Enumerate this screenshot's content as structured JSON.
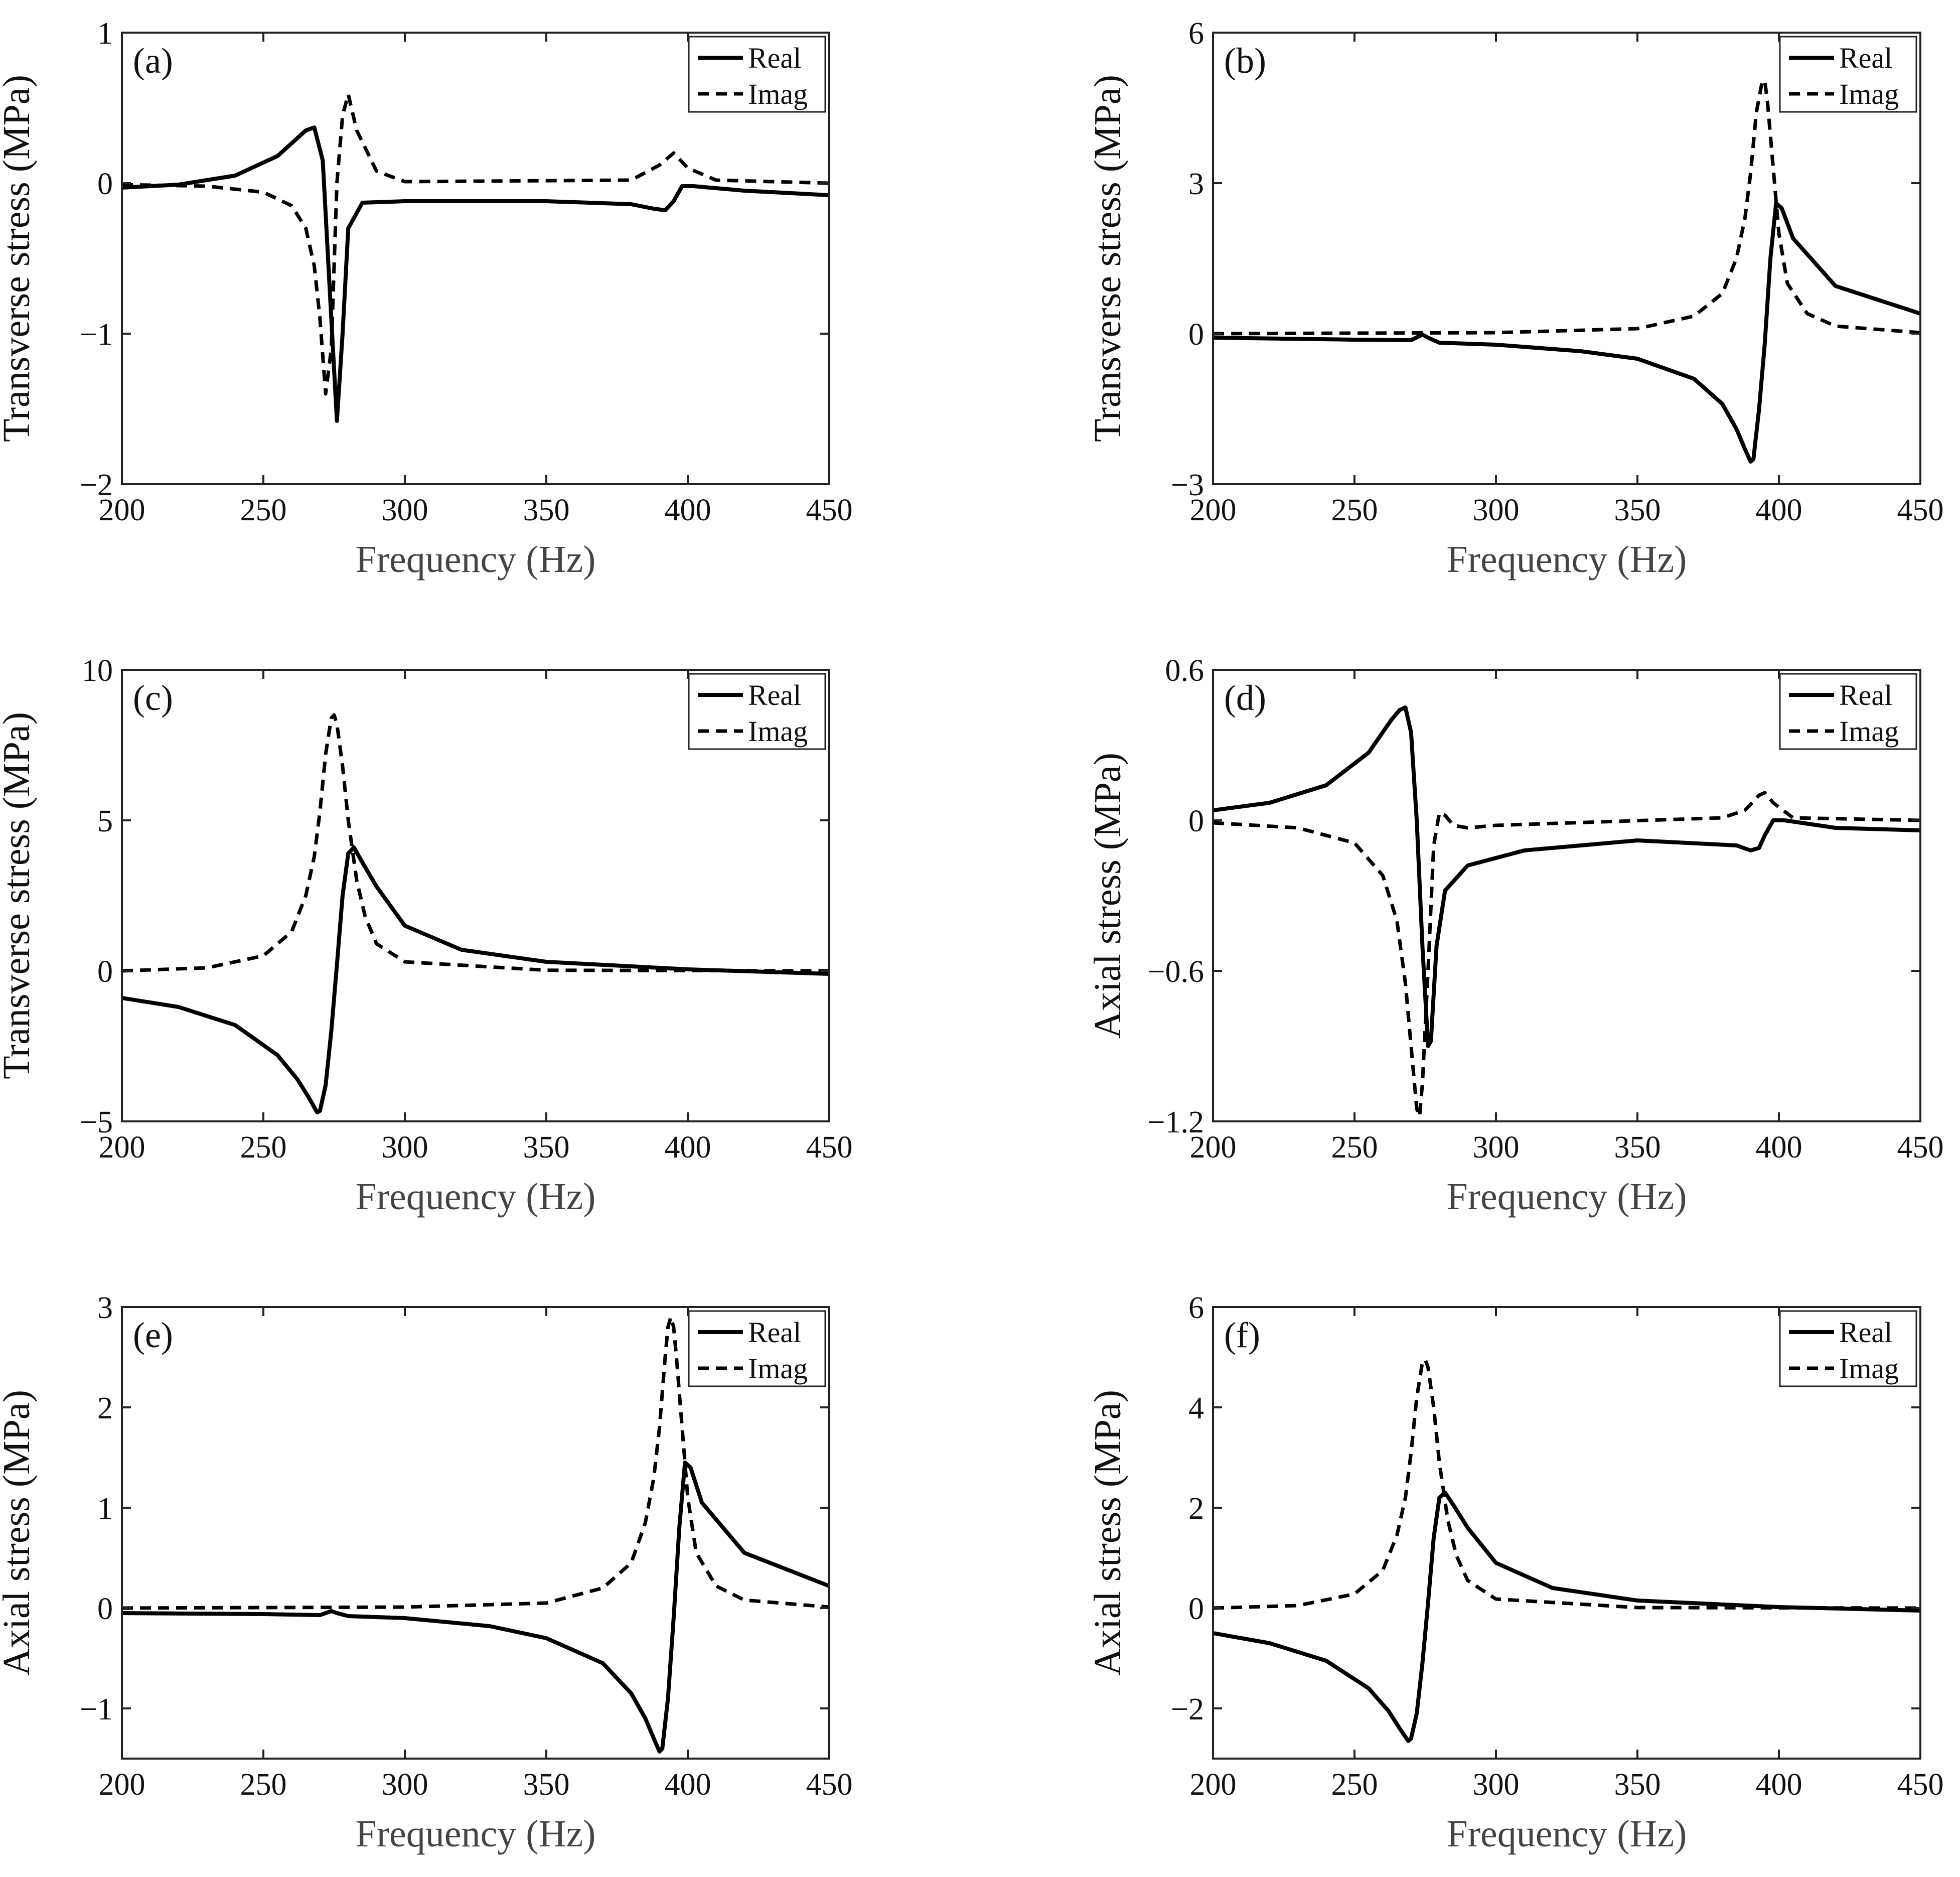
{
  "figure": {
    "legend_labels": {
      "real": "Real",
      "imag": "Imag"
    }
  },
  "chart_data": [
    {
      "panel": "(a)",
      "type": "line",
      "xlabel": "Frequency (Hz)",
      "ylabel": "Transverse stress (MPa)",
      "xlim": [
        200,
        450
      ],
      "ylim": [
        -2,
        1
      ],
      "xticks": [
        200,
        250,
        300,
        350,
        400,
        450
      ],
      "xtick_labels": [
        "200",
        "250",
        "300",
        "350",
        "400",
        "450"
      ],
      "yticks": [
        -2,
        -1,
        0,
        1
      ],
      "ytick_labels": [
        "−2",
        "−1",
        "0",
        "1"
      ],
      "legend": "top-right",
      "series": [
        {
          "name": "Real",
          "style": "solid",
          "x": [
            200,
            220,
            240,
            255,
            265,
            268,
            271,
            274,
            276,
            278,
            280,
            285,
            300,
            350,
            380,
            388,
            392,
            395,
            398,
            402,
            420,
            450
          ],
          "y": [
            -0.03,
            -0.01,
            0.05,
            0.18,
            0.35,
            0.37,
            0.15,
            -0.9,
            -1.58,
            -1.0,
            -0.3,
            -0.13,
            -0.12,
            -0.12,
            -0.14,
            -0.17,
            -0.18,
            -0.12,
            -0.02,
            -0.02,
            -0.05,
            -0.08
          ]
        },
        {
          "name": "Imag",
          "style": "dashed",
          "x": [
            200,
            230,
            250,
            260,
            265,
            268,
            270,
            272,
            274,
            276,
            278,
            280,
            283,
            290,
            300,
            380,
            390,
            395,
            400,
            410,
            450
          ],
          "y": [
            -0.01,
            -0.02,
            -0.06,
            -0.15,
            -0.3,
            -0.55,
            -0.9,
            -1.4,
            -1.1,
            0.0,
            0.45,
            0.59,
            0.35,
            0.08,
            0.01,
            0.02,
            0.12,
            0.2,
            0.1,
            0.02,
            0.0
          ]
        }
      ]
    },
    {
      "panel": "(b)",
      "type": "line",
      "xlabel": "Frequency (Hz)",
      "ylabel": "Transverse stress (MPa)",
      "xlim": [
        200,
        450
      ],
      "ylim": [
        -3,
        6
      ],
      "xticks": [
        200,
        250,
        300,
        350,
        400,
        450
      ],
      "xtick_labels": [
        "200",
        "250",
        "300",
        "350",
        "400",
        "450"
      ],
      "yticks": [
        -3,
        0,
        3,
        6
      ],
      "ytick_labels": [
        "−3",
        "0",
        "3",
        "6"
      ],
      "legend": "top-right",
      "series": [
        {
          "name": "Real",
          "style": "solid",
          "x": [
            200,
            250,
            270,
            274,
            276,
            280,
            300,
            330,
            350,
            370,
            380,
            385,
            388,
            390,
            391,
            393,
            395,
            397,
            399,
            401,
            405,
            420,
            450
          ],
          "y": [
            -0.08,
            -0.12,
            -0.13,
            -0.02,
            -0.08,
            -0.18,
            -0.22,
            -0.35,
            -0.5,
            -0.9,
            -1.4,
            -1.9,
            -2.3,
            -2.55,
            -2.5,
            -1.5,
            -0.2,
            1.5,
            2.6,
            2.5,
            1.9,
            0.95,
            0.4
          ]
        },
        {
          "name": "Imag",
          "style": "dashed",
          "x": [
            200,
            300,
            350,
            370,
            380,
            385,
            388,
            390,
            392,
            394,
            395,
            396,
            398,
            400,
            403,
            410,
            420,
            450
          ],
          "y": [
            0.0,
            0.02,
            0.1,
            0.35,
            0.8,
            1.5,
            2.3,
            3.2,
            4.4,
            5.0,
            5.05,
            4.6,
            3.3,
            2.0,
            1.0,
            0.4,
            0.15,
            0.02
          ]
        }
      ]
    },
    {
      "panel": "(c)",
      "type": "line",
      "xlabel": "Frequency (Hz)",
      "ylabel": "Transverse stress (MPa)",
      "xlim": [
        200,
        450
      ],
      "ylim": [
        -5,
        10
      ],
      "xticks": [
        200,
        250,
        300,
        350,
        400,
        450
      ],
      "xtick_labels": [
        "200",
        "250",
        "300",
        "350",
        "400",
        "450"
      ],
      "yticks": [
        -5,
        0,
        5,
        10
      ],
      "ytick_labels": [
        "−5",
        "0",
        "5",
        "10"
      ],
      "legend": "top-right",
      "series": [
        {
          "name": "Real",
          "style": "solid",
          "x": [
            200,
            220,
            240,
            255,
            262,
            266,
            269,
            270,
            272,
            274,
            276,
            278,
            280,
            282,
            285,
            290,
            300,
            320,
            350,
            400,
            450
          ],
          "y": [
            -0.9,
            -1.2,
            -1.8,
            -2.8,
            -3.6,
            -4.2,
            -4.7,
            -4.65,
            -3.8,
            -2.0,
            0.2,
            2.5,
            3.9,
            4.1,
            3.6,
            2.8,
            1.5,
            0.7,
            0.3,
            0.05,
            -0.1
          ]
        },
        {
          "name": "Imag",
          "style": "dashed",
          "x": [
            200,
            230,
            250,
            260,
            265,
            268,
            270,
            272,
            274,
            275,
            276,
            278,
            280,
            283,
            286,
            290,
            300,
            350,
            450
          ],
          "y": [
            0.0,
            0.1,
            0.5,
            1.3,
            2.5,
            3.8,
            5.3,
            7.2,
            8.4,
            8.5,
            8.2,
            6.8,
            5.0,
            3.0,
            1.8,
            0.9,
            0.3,
            0.02,
            0.0
          ]
        }
      ]
    },
    {
      "panel": "(d)",
      "type": "line",
      "xlabel": "Frequency (Hz)",
      "ylabel": "Axial stress (MPa)",
      "xlim": [
        200,
        450
      ],
      "ylim": [
        -1.2,
        0.6
      ],
      "xticks": [
        200,
        250,
        300,
        350,
        400,
        450
      ],
      "xtick_labels": [
        "200",
        "250",
        "300",
        "350",
        "400",
        "450"
      ],
      "yticks": [
        -1.2,
        -0.6,
        0,
        0.6
      ],
      "ytick_labels": [
        "−1.2",
        "−0.6",
        "0",
        "0.6"
      ],
      "legend": "top-right",
      "series": [
        {
          "name": "Real",
          "style": "solid",
          "x": [
            200,
            220,
            240,
            255,
            263,
            266,
            268,
            270,
            272,
            274,
            276,
            277,
            279,
            282,
            290,
            310,
            350,
            385,
            390,
            393,
            395,
            398,
            402,
            420,
            450
          ],
          "y": [
            0.04,
            0.07,
            0.14,
            0.27,
            0.4,
            0.44,
            0.45,
            0.35,
            0.0,
            -0.5,
            -0.9,
            -0.88,
            -0.5,
            -0.28,
            -0.18,
            -0.12,
            -0.08,
            -0.1,
            -0.12,
            -0.11,
            -0.06,
            0.0,
            0.0,
            -0.03,
            -0.04
          ]
        },
        {
          "name": "Imag",
          "style": "dashed",
          "x": [
            200,
            230,
            250,
            260,
            265,
            268,
            270,
            272,
            273,
            274,
            276,
            278,
            280,
            282,
            285,
            290,
            300,
            380,
            388,
            393,
            395,
            398,
            405,
            450
          ],
          "y": [
            -0.01,
            -0.03,
            -0.09,
            -0.22,
            -0.4,
            -0.65,
            -0.9,
            -1.15,
            -1.18,
            -1.05,
            -0.6,
            -0.1,
            0.03,
            0.02,
            -0.02,
            -0.03,
            -0.02,
            0.01,
            0.04,
            0.1,
            0.11,
            0.07,
            0.01,
            0.0
          ]
        }
      ]
    },
    {
      "panel": "(e)",
      "type": "line",
      "xlabel": "Frequency (Hz)",
      "ylabel": "Axial stress (MPa)",
      "xlim": [
        200,
        450
      ],
      "ylim": [
        -1.5,
        3
      ],
      "xticks": [
        200,
        250,
        300,
        350,
        400,
        450
      ],
      "xtick_labels": [
        "200",
        "250",
        "300",
        "350",
        "400",
        "450"
      ],
      "yticks": [
        -1,
        0,
        1,
        2,
        3
      ],
      "ytick_labels": [
        "−1",
        "0",
        "1",
        "2",
        "3"
      ],
      "legend": "top-right",
      "series": [
        {
          "name": "Real",
          "style": "solid",
          "x": [
            200,
            250,
            270,
            274,
            276,
            280,
            300,
            330,
            350,
            370,
            380,
            385,
            388,
            390,
            391,
            393,
            395,
            397,
            399,
            401,
            405,
            420,
            450
          ],
          "y": [
            -0.05,
            -0.06,
            -0.07,
            -0.03,
            -0.05,
            -0.08,
            -0.1,
            -0.18,
            -0.3,
            -0.55,
            -0.85,
            -1.1,
            -1.3,
            -1.43,
            -1.4,
            -0.9,
            -0.1,
            0.8,
            1.45,
            1.4,
            1.05,
            0.55,
            0.22
          ]
        },
        {
          "name": "Imag",
          "style": "dashed",
          "x": [
            200,
            300,
            350,
            370,
            380,
            385,
            388,
            390,
            392,
            393,
            394,
            395,
            396,
            398,
            400,
            403,
            410,
            420,
            450
          ],
          "y": [
            0.0,
            0.01,
            0.05,
            0.2,
            0.45,
            0.85,
            1.3,
            1.8,
            2.5,
            2.8,
            2.9,
            2.8,
            2.5,
            1.8,
            1.1,
            0.55,
            0.22,
            0.08,
            0.01
          ]
        }
      ]
    },
    {
      "panel": "(f)",
      "type": "line",
      "xlabel": "Frequency (Hz)",
      "ylabel": "Axial stress (MPa)",
      "xlim": [
        200,
        450
      ],
      "ylim": [
        -3,
        6
      ],
      "xticks": [
        200,
        250,
        300,
        350,
        400,
        450
      ],
      "xtick_labels": [
        "200",
        "250",
        "300",
        "350",
        "400",
        "450"
      ],
      "yticks": [
        -2,
        0,
        2,
        4,
        6
      ],
      "ytick_labels": [
        "−2",
        "0",
        "2",
        "4",
        "6"
      ],
      "legend": "top-right",
      "series": [
        {
          "name": "Real",
          "style": "solid",
          "x": [
            200,
            220,
            240,
            255,
            262,
            266,
            269,
            270,
            272,
            274,
            276,
            278,
            280,
            282,
            285,
            290,
            300,
            320,
            350,
            400,
            450
          ],
          "y": [
            -0.5,
            -0.7,
            -1.05,
            -1.6,
            -2.05,
            -2.4,
            -2.65,
            -2.6,
            -2.1,
            -1.1,
            0.1,
            1.4,
            2.2,
            2.3,
            2.05,
            1.6,
            0.9,
            0.4,
            0.15,
            0.02,
            -0.05
          ]
        },
        {
          "name": "Imag",
          "style": "dashed",
          "x": [
            200,
            230,
            250,
            260,
            265,
            268,
            270,
            272,
            274,
            275,
            276,
            278,
            280,
            283,
            286,
            290,
            300,
            350,
            450
          ],
          "y": [
            0.0,
            0.05,
            0.28,
            0.75,
            1.45,
            2.2,
            3.1,
            4.2,
            4.9,
            4.95,
            4.8,
            4.0,
            2.9,
            1.75,
            1.05,
            0.55,
            0.18,
            0.01,
            0.0
          ]
        }
      ]
    }
  ]
}
